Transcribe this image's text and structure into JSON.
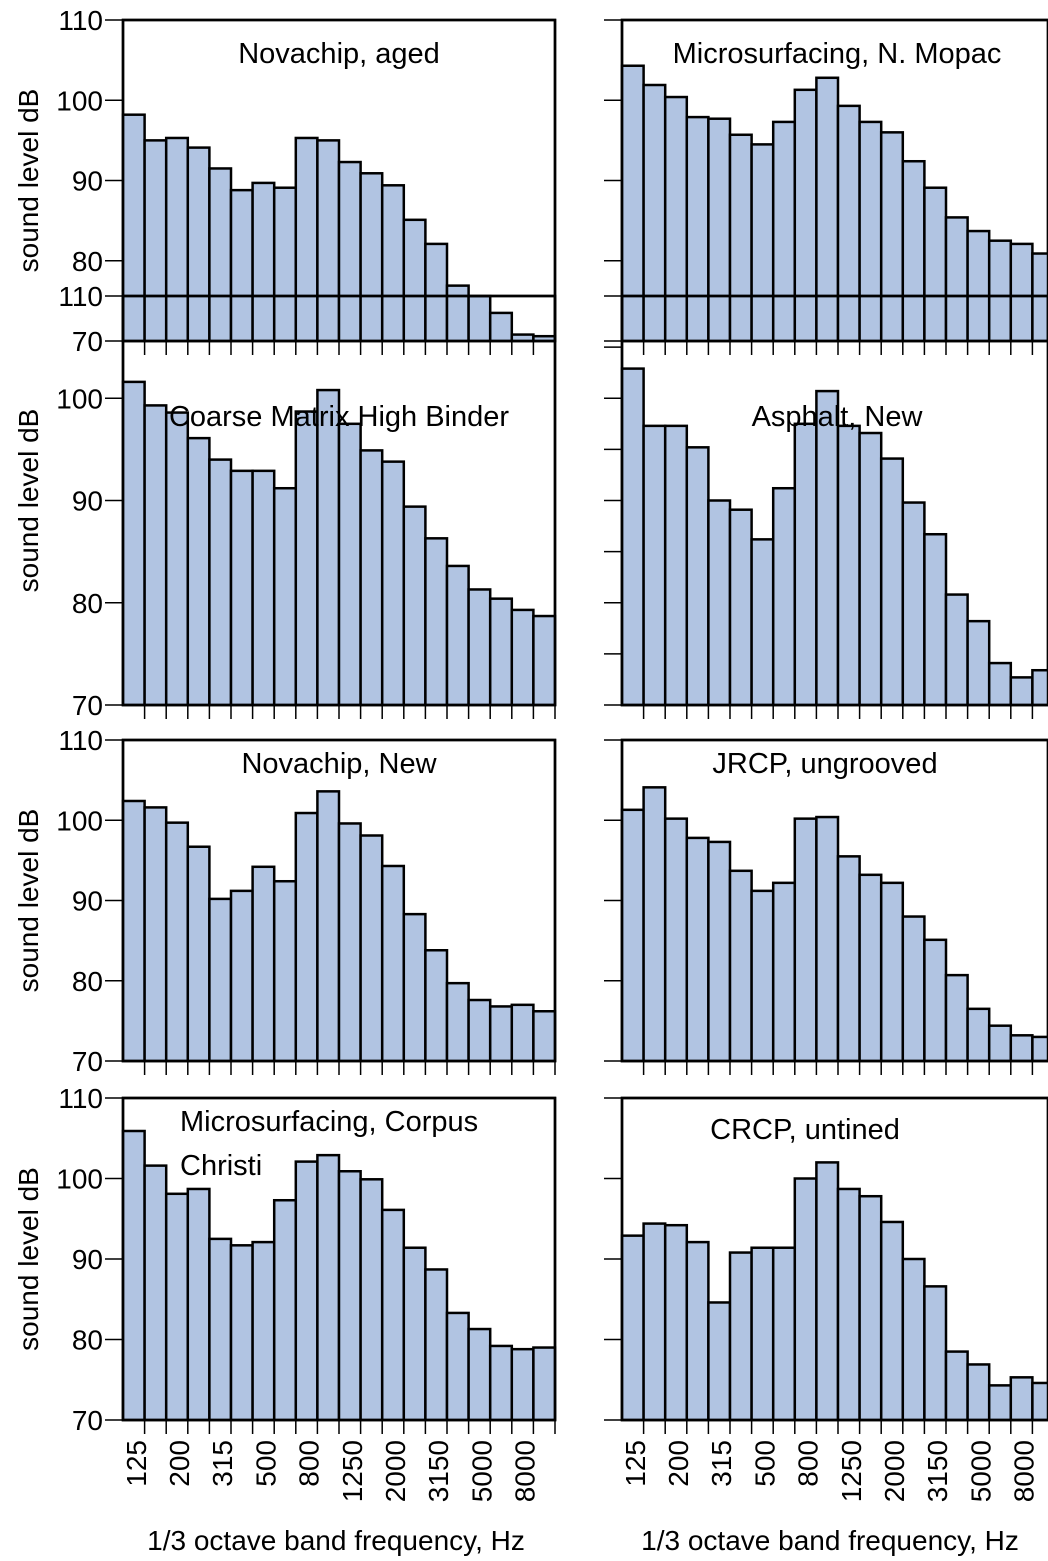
{
  "chart_data": [
    {
      "type": "bar",
      "title": "Novachip, aged",
      "ylabel": "sound level dB",
      "xlabel": "",
      "ylim": [
        70,
        110
      ],
      "yticks": [
        70,
        80,
        90,
        100,
        110
      ],
      "values": [
        98.2,
        95.0,
        95.3,
        94.1,
        91.5,
        88.8,
        89.7,
        89.1,
        95.3,
        95.0,
        92.3,
        90.9,
        89.4,
        85.1,
        82.1,
        76.9,
        75.6,
        73.5,
        70.8,
        70.6
      ]
    },
    {
      "type": "bar",
      "title": "Microsurfacing, N. Mopac",
      "ylabel": "",
      "xlabel": "",
      "ylim": [
        70,
        110
      ],
      "yticks": [],
      "values": [
        104.3,
        101.9,
        100.4,
        97.9,
        97.7,
        95.7,
        94.5,
        97.3,
        101.3,
        102.8,
        99.3,
        97.3,
        96.0,
        92.4,
        89.1,
        85.4,
        83.7,
        82.5,
        82.1,
        80.9
      ]
    },
    {
      "type": "bar",
      "title": "Coarse Matrix High Binder",
      "ylabel": "sound level dB",
      "xlabel": "",
      "ylim": [
        70,
        110
      ],
      "yticks": [
        70,
        80,
        90,
        100,
        110
      ],
      "values": [
        101.6,
        99.3,
        98.6,
        96.1,
        94.0,
        92.9,
        92.9,
        91.2,
        98.7,
        100.8,
        97.5,
        94.9,
        93.8,
        89.4,
        86.3,
        83.6,
        81.3,
        80.4,
        79.3,
        78.7
      ]
    },
    {
      "type": "bar",
      "title": "Asphalt, New",
      "ylabel": "",
      "xlabel": "",
      "ylim": [
        70,
        110
      ],
      "yticks": [],
      "values": [
        102.9,
        97.3,
        97.3,
        95.2,
        90.0,
        89.1,
        86.2,
        91.2,
        97.5,
        100.7,
        97.3,
        96.6,
        94.1,
        89.8,
        86.7,
        80.8,
        78.2,
        74.1,
        72.7,
        73.4
      ]
    },
    {
      "type": "bar",
      "title": "Novachip, New",
      "ylabel": "sound level dB",
      "xlabel": "",
      "ylim": [
        70,
        110
      ],
      "yticks": [
        70,
        80,
        90,
        100,
        110
      ],
      "values": [
        102.4,
        101.6,
        99.7,
        96.7,
        90.2,
        91.2,
        94.2,
        92.4,
        100.9,
        103.6,
        99.6,
        98.1,
        94.3,
        88.3,
        83.8,
        79.7,
        77.6,
        76.8,
        77.0,
        76.2
      ]
    },
    {
      "type": "bar",
      "title": "JRCP, ungrooved",
      "ylabel": "",
      "xlabel": "",
      "ylim": [
        70,
        110
      ],
      "yticks": [],
      "values": [
        101.3,
        104.1,
        100.2,
        97.8,
        97.3,
        93.7,
        91.2,
        92.2,
        100.2,
        100.4,
        95.5,
        93.2,
        92.2,
        88.0,
        85.1,
        80.7,
        76.5,
        74.4,
        73.2,
        73.0
      ]
    },
    {
      "type": "bar",
      "title": "Microsurfacing, Corpus Christi",
      "title_lines": [
        "Microsurfacing, Corpus",
        "Christi"
      ],
      "ylabel": "sound level dB",
      "xlabel": "1/3 octave band frequency,  Hz",
      "ylim": [
        70,
        110
      ],
      "yticks": [
        70,
        80,
        90,
        100,
        110
      ],
      "values": [
        105.9,
        101.6,
        98.1,
        98.7,
        92.5,
        91.7,
        92.1,
        97.3,
        102.1,
        102.9,
        100.9,
        99.9,
        96.1,
        91.4,
        88.7,
        83.3,
        81.3,
        79.2,
        78.8,
        79.0
      ],
      "tick_labels": [
        "125",
        "200",
        "315",
        "500",
        "800",
        "1250",
        "2000",
        "3150",
        "5000",
        "8000"
      ]
    },
    {
      "type": "bar",
      "title": "CRCP, untined",
      "ylabel": "",
      "xlabel": "1/3 octave band frequency,  Hz",
      "ylim": [
        70,
        110
      ],
      "yticks": [],
      "values": [
        92.9,
        94.4,
        94.2,
        92.1,
        84.6,
        90.8,
        91.4,
        91.4,
        100.0,
        102.0,
        98.7,
        97.8,
        94.6,
        90.0,
        86.6,
        78.5,
        76.9,
        74.3,
        75.3,
        74.6
      ],
      "tick_labels": [
        "125",
        "200",
        "315",
        "500",
        "800",
        "1250",
        "2000",
        "3150",
        "5000",
        "8000"
      ]
    }
  ]
}
